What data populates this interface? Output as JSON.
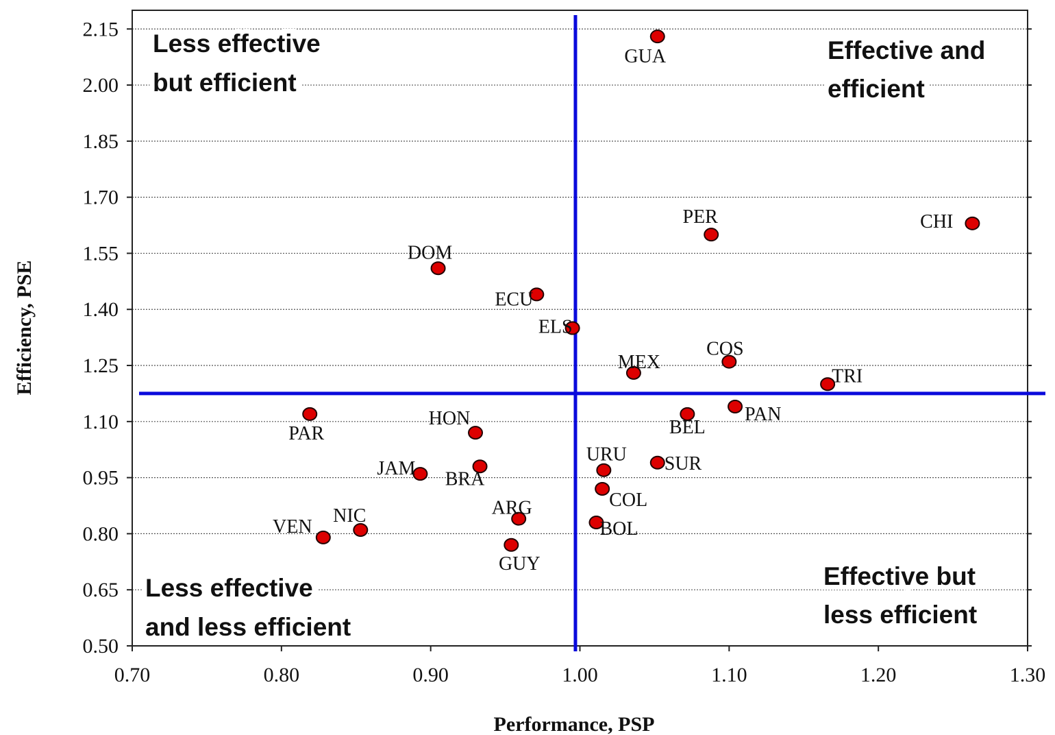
{
  "chart_data": {
    "type": "scatter",
    "xlabel": "Performance, PSP",
    "ylabel": "Efficiency, PSE",
    "xlim": [
      0.7,
      1.3
    ],
    "ylim": [
      0.5,
      2.2
    ],
    "x_ticks": [
      "0.70",
      "0.80",
      "0.90",
      "1.00",
      "1.10",
      "1.20",
      "1.30"
    ],
    "y_ticks": [
      "0.50",
      "0.65",
      "0.80",
      "0.95",
      "1.10",
      "1.25",
      "1.40",
      "1.55",
      "1.70",
      "1.85",
      "2.00",
      "2.15"
    ],
    "grid": "horizontal dashed",
    "point_color": "#dd0000",
    "divider_color": "#0a0adc",
    "dividers": {
      "x": 0.997,
      "y": 1.175
    },
    "quadrant_labels": {
      "top_left": [
        "Less effective",
        "but efficient"
      ],
      "top_right": [
        "Effective and",
        "efficient"
      ],
      "bottom_left": [
        "Less effective",
        "and less efficient"
      ],
      "bottom_right": [
        "Effective but",
        "less efficient"
      ]
    },
    "points": [
      {
        "label": "GUA",
        "x": 1.052,
        "y": 2.13
      },
      {
        "label": "CHI",
        "x": 1.263,
        "y": 1.63
      },
      {
        "label": "PER",
        "x": 1.088,
        "y": 1.6
      },
      {
        "label": "DOM",
        "x": 0.905,
        "y": 1.51
      },
      {
        "label": "ECU",
        "x": 0.971,
        "y": 1.44
      },
      {
        "label": "ELS",
        "x": 0.995,
        "y": 1.35
      },
      {
        "label": "MEX",
        "x": 1.036,
        "y": 1.23
      },
      {
        "label": "COS",
        "x": 1.1,
        "y": 1.26
      },
      {
        "label": "TRI",
        "x": 1.166,
        "y": 1.2
      },
      {
        "label": "PAN",
        "x": 1.104,
        "y": 1.14
      },
      {
        "label": "BEL",
        "x": 1.072,
        "y": 1.12
      },
      {
        "label": "PAR",
        "x": 0.819,
        "y": 1.12
      },
      {
        "label": "HON",
        "x": 0.93,
        "y": 1.07
      },
      {
        "label": "URU",
        "x": 1.016,
        "y": 0.97
      },
      {
        "label": "SUR",
        "x": 1.052,
        "y": 0.99
      },
      {
        "label": "JAM",
        "x": 0.893,
        "y": 0.96
      },
      {
        "label": "BRA",
        "x": 0.933,
        "y": 0.98
      },
      {
        "label": "COL",
        "x": 1.015,
        "y": 0.92
      },
      {
        "label": "ARG",
        "x": 0.959,
        "y": 0.84
      },
      {
        "label": "BOL",
        "x": 1.011,
        "y": 0.83
      },
      {
        "label": "NIC",
        "x": 0.853,
        "y": 0.81
      },
      {
        "label": "VEN",
        "x": 0.828,
        "y": 0.79
      },
      {
        "label": "GUY",
        "x": 0.954,
        "y": 0.77
      }
    ]
  }
}
